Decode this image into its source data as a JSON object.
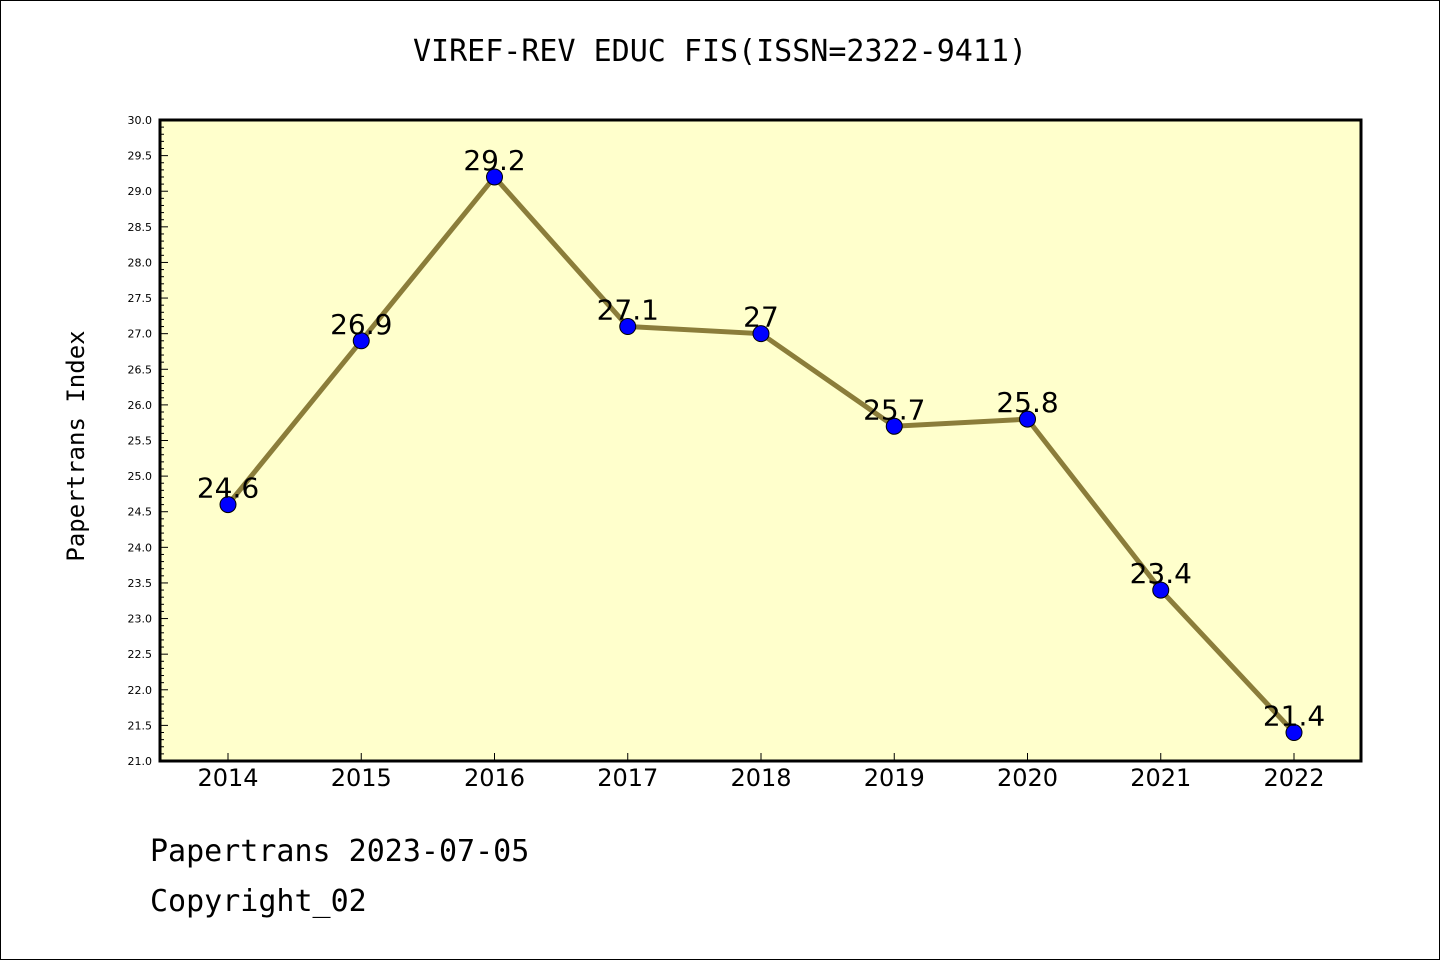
{
  "chart_data": {
    "type": "line",
    "title": "VIREF-REV EDUC FIS(ISSN=2322-9411)",
    "xlabel": "",
    "ylabel": "Papertrans Index",
    "categories": [
      "2014",
      "2015",
      "2016",
      "2017",
      "2018",
      "2019",
      "2020",
      "2021",
      "2022"
    ],
    "values": [
      24.6,
      26.9,
      29.2,
      27.1,
      27.0,
      25.7,
      25.8,
      23.4,
      21.4
    ],
    "data_labels": [
      "24.6",
      "26.9",
      "29.2",
      "27.1",
      "27",
      "25.7",
      "25.8",
      "23.4",
      "21.4"
    ],
    "ylim": [
      21.0,
      30.0
    ],
    "yticks": [
      "21.0",
      "21.5",
      "22.0",
      "22.5",
      "23.0",
      "23.5",
      "24.0",
      "24.5",
      "25.0",
      "25.5",
      "26.0",
      "26.5",
      "27.0",
      "27.5",
      "28.0",
      "28.5",
      "29.0",
      "29.5",
      "30.0"
    ],
    "grid": false,
    "colors": {
      "line": "#8B7D3A",
      "marker": "#0000FF",
      "plot_background": "#FFFFCC"
    }
  },
  "footer": {
    "date_text": "Papertrans 2023-07-05",
    "copyright_text": "Copyright_02"
  }
}
